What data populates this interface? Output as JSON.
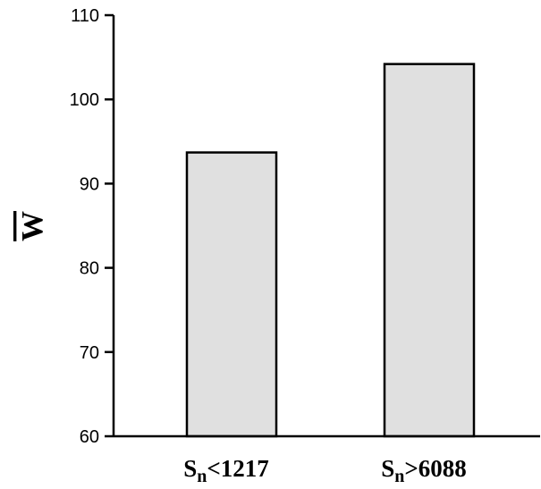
{
  "chart_data": {
    "type": "bar",
    "categories": [
      {
        "base": "S",
        "sub": "n",
        "rest": "<1217"
      },
      {
        "base": "S",
        "sub": "n",
        "rest": ">6088"
      }
    ],
    "values": [
      93.7,
      104.2
    ],
    "ylabel": "W",
    "ylabel_overline": true,
    "ylim": [
      60,
      110
    ],
    "yticks": [
      60,
      70,
      80,
      90,
      100,
      110
    ],
    "grid": false,
    "bar_color": "#e0e0e0",
    "bar_edge_color": "#000000"
  }
}
